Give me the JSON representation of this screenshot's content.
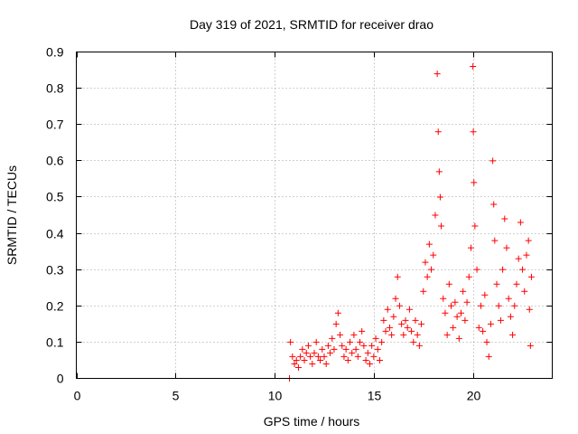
{
  "chart_data": {
    "type": "scatter",
    "title": "Day 319 of 2021, SRMTID for receiver drao",
    "xlabel": "GPS time / hours",
    "ylabel": "SRMTID / TECUs",
    "xlim": [
      0,
      24
    ],
    "ylim": [
      0,
      0.9
    ],
    "x_ticks": [
      0,
      5,
      10,
      15,
      20
    ],
    "x_tick_labels": [
      "0",
      "5",
      "10",
      "15",
      "20"
    ],
    "y_ticks": [
      0,
      0.1,
      0.2,
      0.3,
      0.4,
      0.5,
      0.6,
      0.7,
      0.8,
      0.9
    ],
    "y_tick_labels": [
      "0",
      "0.1",
      "0.2",
      "0.3",
      "0.4",
      "0.5",
      "0.6",
      "0.7",
      "0.8",
      "0.9"
    ],
    "grid": true,
    "marker": "+",
    "color": "#ff0000",
    "series": [
      {
        "name": "SRMTID",
        "points": [
          [
            10.75,
            0.0
          ],
          [
            10.8,
            0.1
          ],
          [
            10.9,
            0.06
          ],
          [
            11.0,
            0.04
          ],
          [
            11.1,
            0.05
          ],
          [
            11.2,
            0.03
          ],
          [
            11.3,
            0.06
          ],
          [
            11.4,
            0.08
          ],
          [
            11.5,
            0.05
          ],
          [
            11.6,
            0.07
          ],
          [
            11.7,
            0.09
          ],
          [
            11.8,
            0.06
          ],
          [
            11.9,
            0.04
          ],
          [
            12.0,
            0.07
          ],
          [
            12.1,
            0.1
          ],
          [
            12.2,
            0.06
          ],
          [
            12.3,
            0.05
          ],
          [
            12.4,
            0.08
          ],
          [
            12.5,
            0.06
          ],
          [
            12.6,
            0.04
          ],
          [
            12.7,
            0.09
          ],
          [
            12.8,
            0.07
          ],
          [
            12.9,
            0.11
          ],
          [
            13.0,
            0.08
          ],
          [
            13.1,
            0.15
          ],
          [
            13.2,
            0.18
          ],
          [
            13.3,
            0.12
          ],
          [
            13.4,
            0.09
          ],
          [
            13.5,
            0.06
          ],
          [
            13.6,
            0.08
          ],
          [
            13.7,
            0.05
          ],
          [
            13.8,
            0.1
          ],
          [
            13.9,
            0.07
          ],
          [
            14.0,
            0.12
          ],
          [
            14.1,
            0.08
          ],
          [
            14.2,
            0.06
          ],
          [
            14.3,
            0.1
          ],
          [
            14.4,
            0.13
          ],
          [
            14.5,
            0.09
          ],
          [
            14.6,
            0.05
          ],
          [
            14.7,
            0.07
          ],
          [
            14.8,
            0.04
          ],
          [
            14.9,
            0.09
          ],
          [
            15.0,
            0.06
          ],
          [
            15.1,
            0.11
          ],
          [
            15.2,
            0.08
          ],
          [
            15.3,
            0.05
          ],
          [
            15.4,
            0.1
          ],
          [
            15.5,
            0.16
          ],
          [
            15.6,
            0.13
          ],
          [
            15.7,
            0.19
          ],
          [
            15.8,
            0.14
          ],
          [
            15.9,
            0.12
          ],
          [
            16.0,
            0.17
          ],
          [
            16.1,
            0.22
          ],
          [
            16.2,
            0.28
          ],
          [
            16.3,
            0.2
          ],
          [
            16.4,
            0.15
          ],
          [
            16.5,
            0.12
          ],
          [
            16.6,
            0.16
          ],
          [
            16.7,
            0.14
          ],
          [
            16.8,
            0.19
          ],
          [
            16.9,
            0.13
          ],
          [
            17.0,
            0.1
          ],
          [
            17.1,
            0.16
          ],
          [
            17.2,
            0.12
          ],
          [
            17.3,
            0.09
          ],
          [
            17.4,
            0.15
          ],
          [
            17.5,
            0.24
          ],
          [
            17.6,
            0.32
          ],
          [
            17.7,
            0.28
          ],
          [
            17.8,
            0.37
          ],
          [
            17.9,
            0.3
          ],
          [
            18.0,
            0.34
          ],
          [
            18.1,
            0.45
          ],
          [
            18.2,
            0.84
          ],
          [
            18.25,
            0.68
          ],
          [
            18.3,
            0.57
          ],
          [
            18.35,
            0.5
          ],
          [
            18.4,
            0.42
          ],
          [
            18.5,
            0.22
          ],
          [
            18.6,
            0.18
          ],
          [
            18.7,
            0.12
          ],
          [
            18.8,
            0.26
          ],
          [
            18.9,
            0.2
          ],
          [
            19.0,
            0.14
          ],
          [
            19.1,
            0.21
          ],
          [
            19.2,
            0.17
          ],
          [
            19.3,
            0.11
          ],
          [
            19.4,
            0.18
          ],
          [
            19.5,
            0.24
          ],
          [
            19.6,
            0.16
          ],
          [
            19.7,
            0.21
          ],
          [
            19.8,
            0.28
          ],
          [
            19.9,
            0.36
          ],
          [
            20.0,
            0.86
          ],
          [
            20.02,
            0.68
          ],
          [
            20.05,
            0.54
          ],
          [
            20.1,
            0.42
          ],
          [
            20.2,
            0.3
          ],
          [
            20.3,
            0.14
          ],
          [
            20.4,
            0.2
          ],
          [
            20.5,
            0.13
          ],
          [
            20.6,
            0.23
          ],
          [
            20.7,
            0.1
          ],
          [
            20.8,
            0.06
          ],
          [
            20.9,
            0.15
          ],
          [
            21.0,
            0.6
          ],
          [
            21.05,
            0.48
          ],
          [
            21.1,
            0.38
          ],
          [
            21.2,
            0.26
          ],
          [
            21.3,
            0.2
          ],
          [
            21.4,
            0.16
          ],
          [
            21.5,
            0.3
          ],
          [
            21.6,
            0.44
          ],
          [
            21.7,
            0.36
          ],
          [
            21.8,
            0.22
          ],
          [
            21.9,
            0.17
          ],
          [
            22.0,
            0.12
          ],
          [
            22.1,
            0.2
          ],
          [
            22.2,
            0.26
          ],
          [
            22.3,
            0.33
          ],
          [
            22.4,
            0.43
          ],
          [
            22.5,
            0.3
          ],
          [
            22.6,
            0.24
          ],
          [
            22.7,
            0.34
          ],
          [
            22.8,
            0.38
          ],
          [
            22.85,
            0.19
          ],
          [
            22.9,
            0.09
          ],
          [
            22.95,
            0.28
          ]
        ]
      }
    ]
  }
}
